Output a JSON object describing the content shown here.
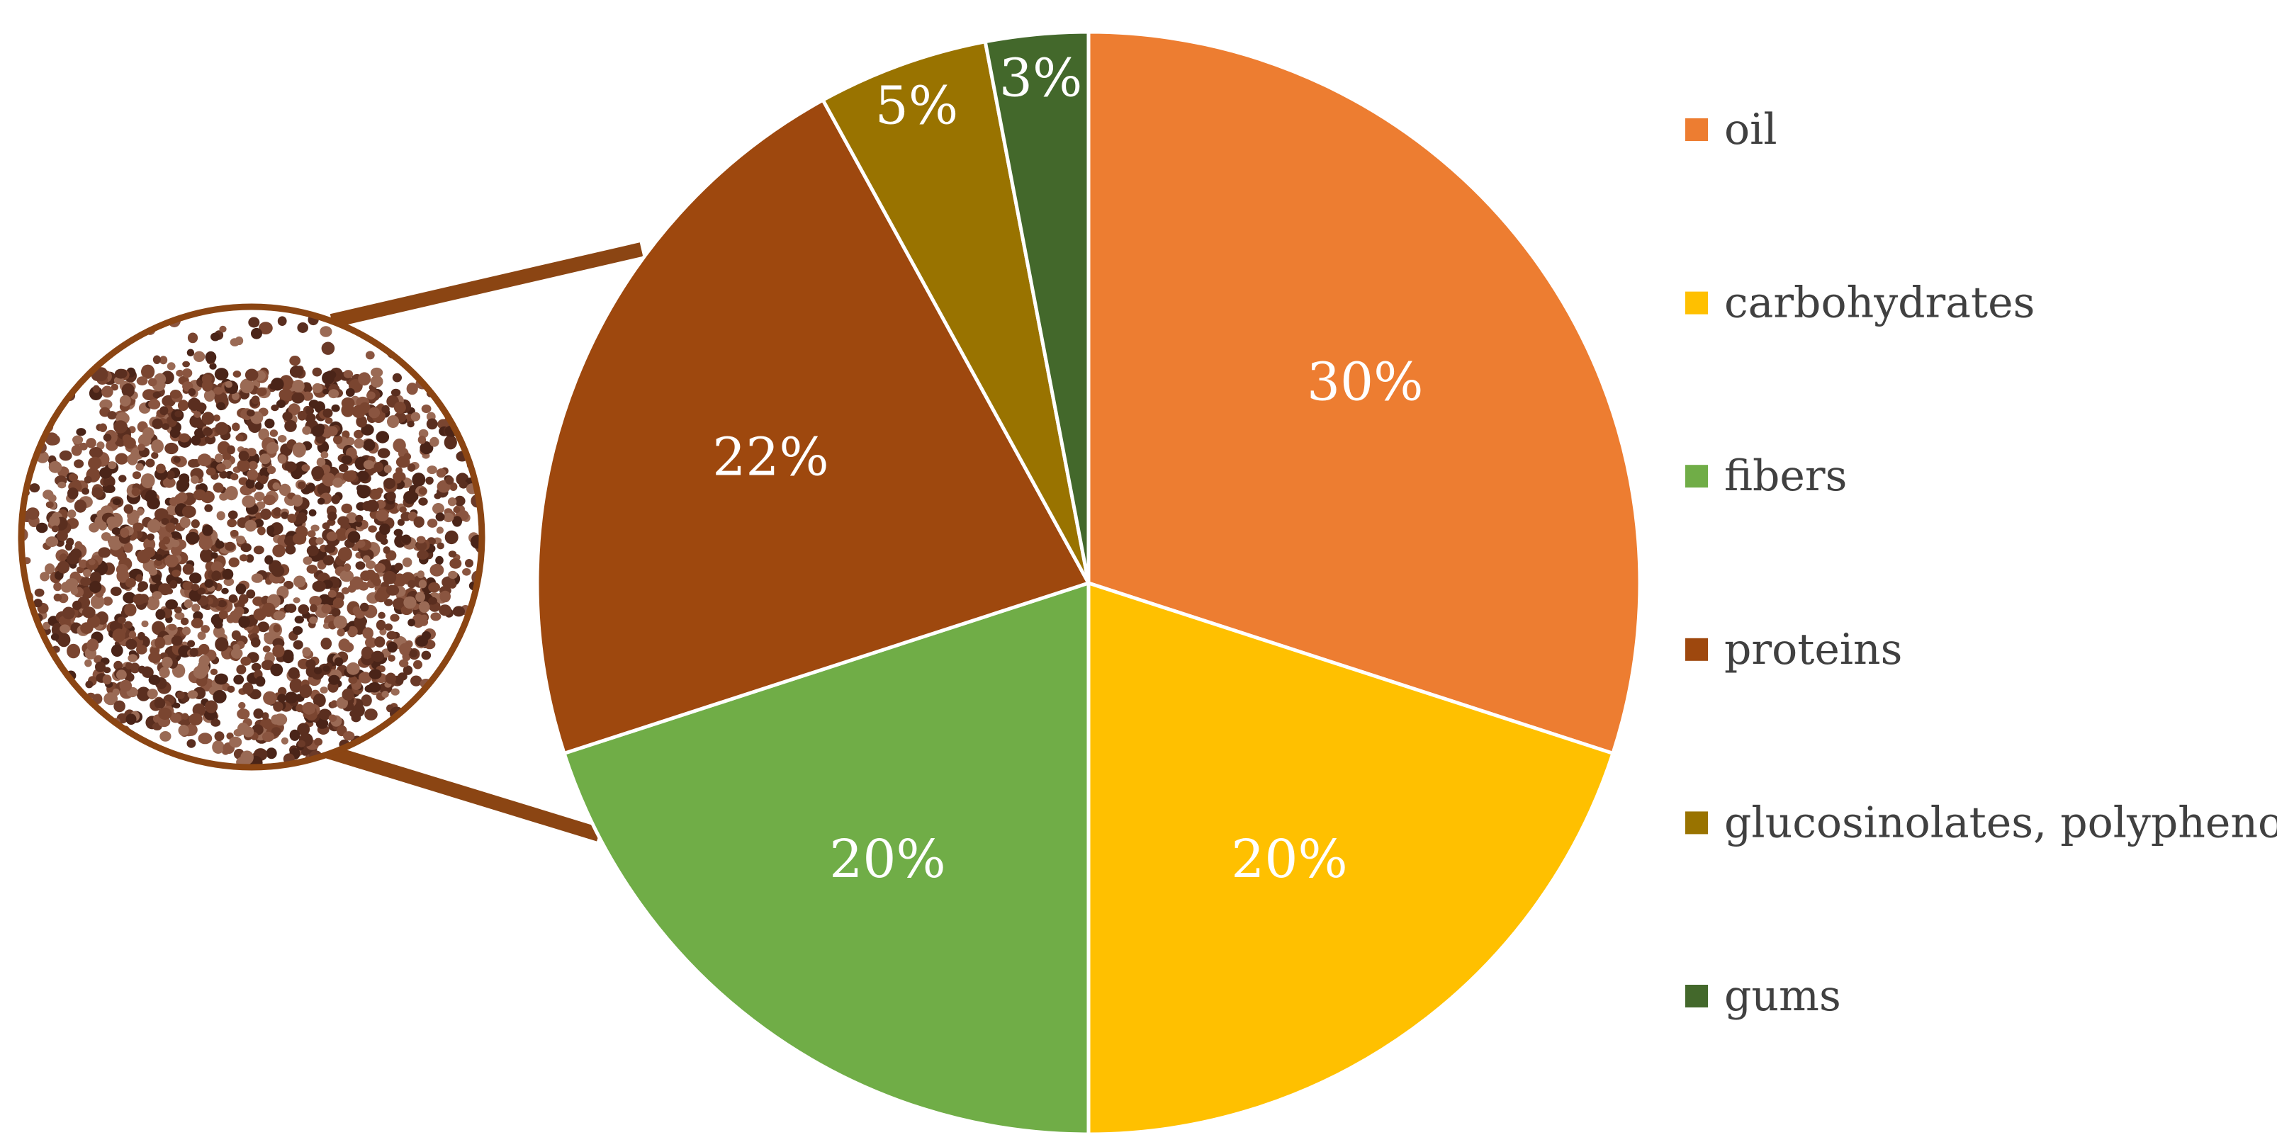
{
  "chart_data": {
    "type": "pie",
    "title": "",
    "start_angle_deg": 0,
    "direction": "clockwise",
    "legend_position": "right",
    "slices": [
      {
        "label": "oil",
        "value": 30,
        "display": "30%",
        "color": "#ED7D31"
      },
      {
        "label": "carbohydrates",
        "value": 20,
        "display": "20%",
        "color": "#FFC000"
      },
      {
        "label": "fibers",
        "value": 20,
        "display": "20%",
        "color": "#70AD47"
      },
      {
        "label": "proteins",
        "value": 22,
        "display": "22%",
        "color": "#9E480E"
      },
      {
        "label": "glucosinolates, polyphenols",
        "value": 5,
        "display": "5%",
        "color": "#997300"
      },
      {
        "label": "gums",
        "value": 3,
        "display": "3%",
        "color": "#43682B"
      }
    ]
  },
  "inset": {
    "icon": "seed-pile-image",
    "border_color": "#8B4513",
    "background_color": "#ffffff",
    "seed_colors": [
      "#5a2e1f",
      "#7a4530",
      "#8a5540",
      "#6b3a28",
      "#4a2418",
      "#9a6a55"
    ]
  }
}
